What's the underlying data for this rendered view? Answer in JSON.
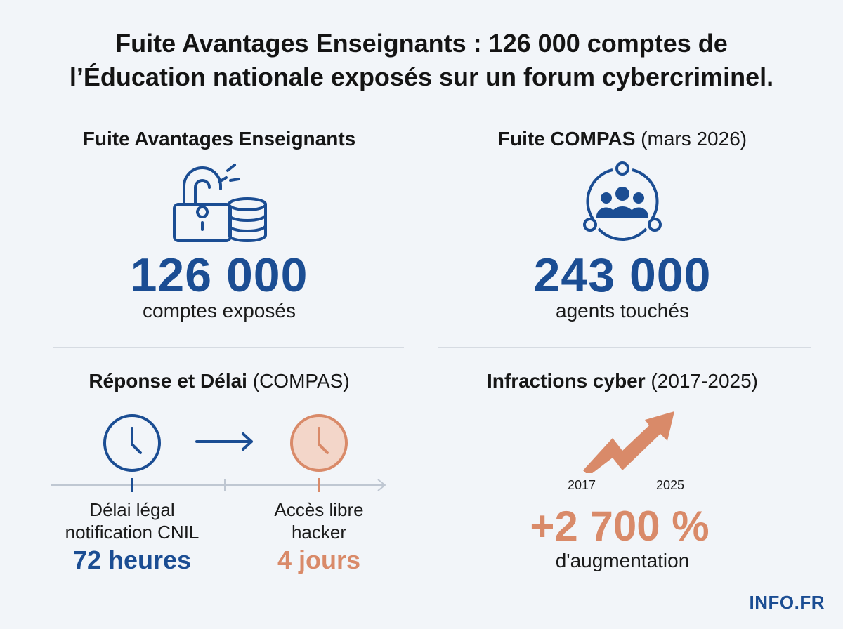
{
  "title": {
    "line1": "Fuite Avantages Enseignants : 126 000 comptes de",
    "line2": "l’Éducation nationale exposés sur un forum cybercriminel."
  },
  "panel_tl": {
    "heading": "Fuite Avantages Enseignants",
    "value": "126 000",
    "caption": "comptes exposés"
  },
  "panel_tr": {
    "heading_bold": "Fuite COMPAS",
    "heading_paren": "(mars 2026)",
    "value": "243 000",
    "caption": "agents touchés"
  },
  "panel_bl": {
    "heading_bold": "Réponse et Délai",
    "heading_paren": "(COMPAS)",
    "left_label_line1": "Délai légal",
    "left_label_line2": "notification CNIL",
    "left_value": "72 heures",
    "right_label_line1": "Accès libre",
    "right_label_line2": "hacker",
    "right_value": "4 jours"
  },
  "panel_br": {
    "heading_bold": "Infractions cyber",
    "heading_paren": "(2017-2025)",
    "year_start": "2017",
    "year_end": "2025",
    "value": "+2 700 %",
    "caption": "d'augmentation"
  },
  "logo": "INFO.FR",
  "colors": {
    "blue": "#1b4d93",
    "orange": "#d98a69",
    "orange_fill": "#f3d6c9",
    "divider": "#d6dbe2",
    "background": "#f2f5f9"
  },
  "icons": {
    "panel_tl": "unlocked-padlock-database-icon",
    "panel_tr": "group-network-icon",
    "panel_bl_left": "clock-icon",
    "panel_bl_arrow": "arrow-right-icon",
    "panel_bl_right": "clock-icon",
    "panel_br": "trend-up-arrow-icon"
  }
}
